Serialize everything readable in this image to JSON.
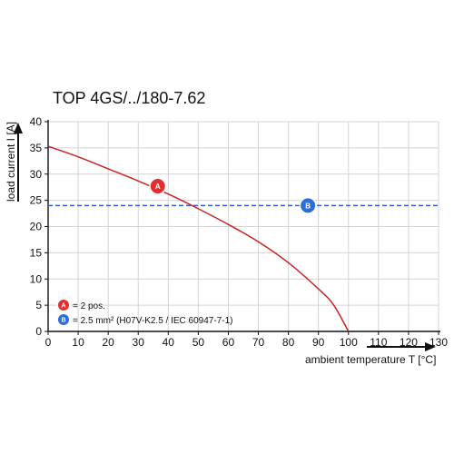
{
  "title": "TOP 4GS/../180-7.62",
  "chart_data": {
    "type": "line",
    "title": "TOP 4GS/../180-7.62",
    "xlabel": "ambient temperature T [°C]",
    "ylabel": "load current I [A]",
    "xlim": [
      0,
      130
    ],
    "ylim": [
      0,
      40
    ],
    "x_ticks": [
      0,
      10,
      20,
      30,
      40,
      50,
      60,
      70,
      80,
      90,
      100,
      110,
      120,
      130
    ],
    "y_ticks": [
      0,
      5,
      10,
      15,
      20,
      25,
      30,
      35,
      40
    ],
    "grid": true,
    "series": [
      {
        "marker": "A",
        "color": "#cc2222",
        "x": [
          0,
          10,
          20,
          30,
          40,
          50,
          60,
          70,
          80,
          90,
          95,
          100
        ],
        "y": [
          35.3,
          33.3,
          31.0,
          28.7,
          26.2,
          23.4,
          20.4,
          17.1,
          13.1,
          8.1,
          5.1,
          0
        ]
      },
      {
        "marker": "B",
        "color": "#2266cc",
        "style": "dashed",
        "x": [
          0,
          130
        ],
        "y": [
          24,
          24
        ]
      }
    ],
    "markers": [
      {
        "label": "A",
        "x": 36.5,
        "y": 27.7,
        "color": "#e03030"
      },
      {
        "label": "B",
        "x": 86.5,
        "y": 24,
        "color": "#2a6fd6"
      }
    ],
    "legend": {
      "placement": "bottom-left",
      "entries": [
        {
          "badge": "A",
          "color": "#e03030",
          "text": "= 2 pos."
        },
        {
          "badge": "B",
          "color": "#2a6fd6",
          "text": "= 2.5 mm² (H07V-K2.5 / IEC 60947-7-1)"
        }
      ]
    }
  }
}
